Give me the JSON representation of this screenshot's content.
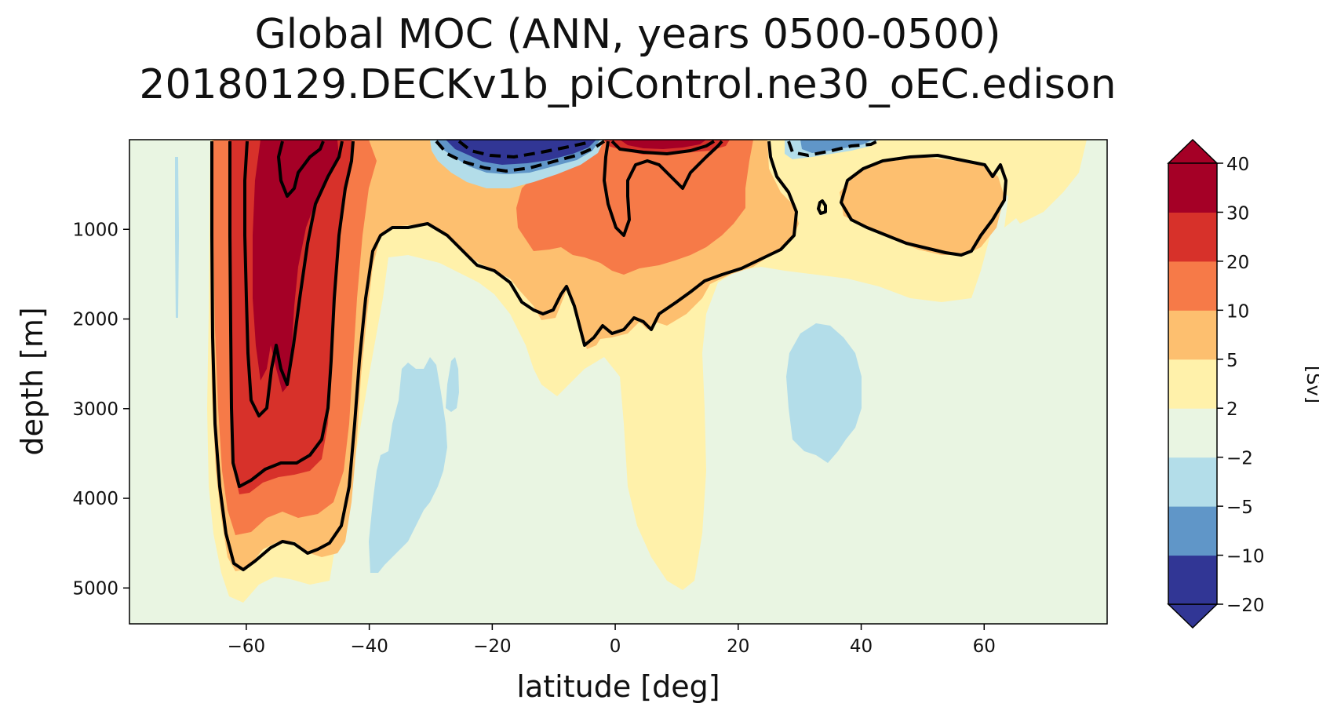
{
  "chart_data": {
    "type": "contourf",
    "title": "Global MOC (ANN, years 0500-0500)",
    "subtitle": "20180129.DECKv1b_piControl.ne30_oEC.edison",
    "xlabel": "latitude [deg]",
    "ylabel": "depth [m]",
    "xlim": [
      -79,
      80
    ],
    "ylim": [
      5400,
      0
    ],
    "x_ticks": [
      -60,
      -40,
      -20,
      0,
      20,
      40,
      60
    ],
    "x_tick_labels": [
      "−60",
      "−40",
      "−20",
      "0",
      "20",
      "40",
      "60"
    ],
    "y_ticks": [
      1000,
      2000,
      3000,
      4000,
      5000
    ],
    "y_tick_labels": [
      "1000",
      "2000",
      "3000",
      "4000",
      "5000"
    ],
    "colorbar": {
      "label": "[Sv]",
      "levels": [
        -20,
        -10,
        -5,
        -2,
        2,
        5,
        10,
        20,
        30,
        40
      ],
      "level_labels": [
        "−20",
        "−10",
        "−5",
        "−2",
        "2",
        "5",
        "10",
        "20",
        "30",
        "40"
      ],
      "colors": [
        "#313695",
        "#6096c8",
        "#b3dde9",
        "#e9f5e2",
        "#fff1aa",
        "#fdbf6f",
        "#f67a48",
        "#d7312a",
        "#a50026"
      ],
      "extend": "both",
      "under_color": "#313695",
      "over_color": "#a50026"
    },
    "contour_lines": [
      -10,
      -5,
      5,
      20,
      30
    ],
    "negative_contours": "dashed"
  },
  "colors": {
    "background_fill": "#e9f5e2",
    "contour_line": "#000000"
  }
}
